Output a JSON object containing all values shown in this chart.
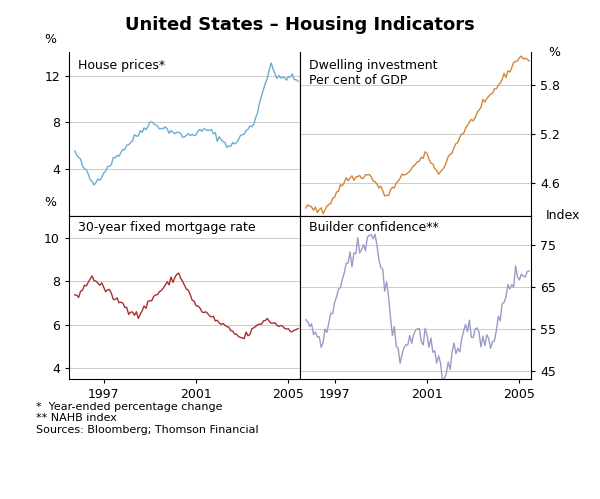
{
  "title": "United States – Housing Indicators",
  "footnotes": [
    "*  Year-ended percentage change",
    "** NAHB index",
    "Sources: Bloomberg; Thomson Financial"
  ],
  "panel_tl": {
    "label": "House prices*",
    "ylabel": "%",
    "ylim": [
      0,
      14
    ],
    "yticks": [
      4,
      8,
      12
    ],
    "color": "#6aaed6"
  },
  "panel_tr": {
    "label": "Dwelling investment\nPer cent of GDP",
    "ylabel": "%",
    "ylim": [
      4.2,
      6.2
    ],
    "yticks": [
      4.6,
      5.2,
      5.8
    ],
    "color": "#d4863a"
  },
  "panel_bl": {
    "label": "30-year fixed mortgage rate",
    "ylabel": "%",
    "ylim": [
      3.5,
      11
    ],
    "yticks": [
      4,
      6,
      8,
      10
    ],
    "color": "#a63030"
  },
  "panel_br": {
    "label": "Builder confidence**",
    "ylabel": "Index",
    "ylim": [
      43,
      82
    ],
    "yticks": [
      45,
      55,
      65,
      75
    ],
    "color": "#9b9bc8"
  },
  "xmin": 1995.5,
  "xmax": 2005.5,
  "xticks_left": [
    1997,
    2001,
    2005
  ],
  "xticks_right": [
    1997,
    2001,
    2005
  ],
  "background_color": "#ffffff",
  "grid_color": "#cccccc"
}
